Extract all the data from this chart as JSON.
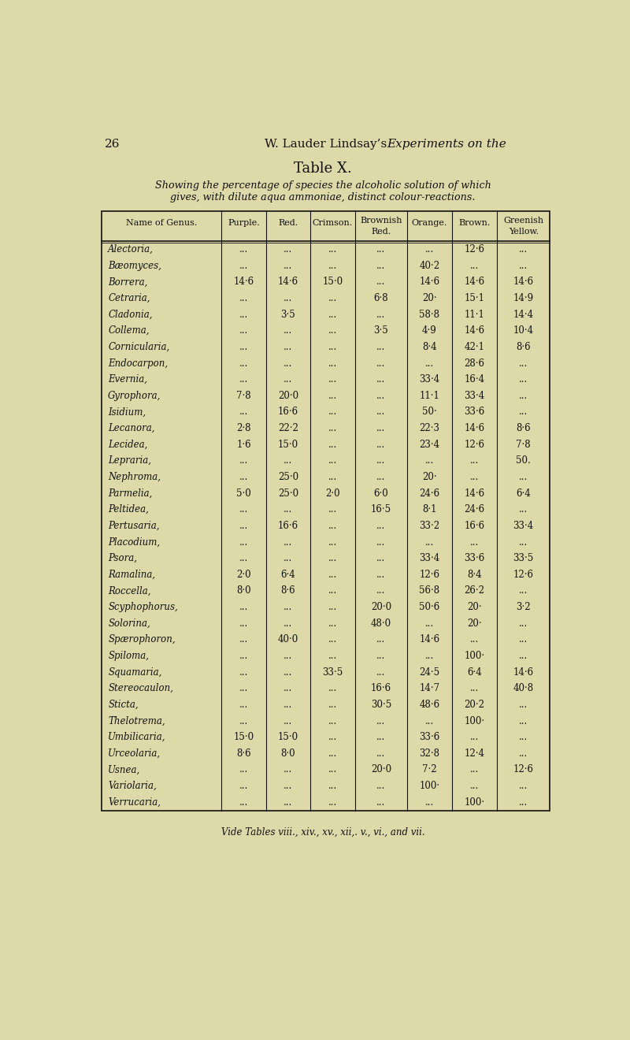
{
  "page_num": "26",
  "header_normal": "W. Lauder Lindsay’s ",
  "header_italic": "Experiments on the",
  "title": "Table X.",
  "subtitle_line1": "Showing the percentage of species the alcoholic solution of which",
  "subtitle_line2": "gives, with dilute aqua ammoniae, distinct colour-reactions.",
  "col_headers": [
    "Name of Genus.",
    "Purple.",
    "Red.",
    "Crimson.",
    "Brownish\nRed.",
    "Orange.",
    "Brown.",
    "Greenish\nYellow."
  ],
  "rows": [
    [
      "Alectoria,",
      "...",
      "...",
      "...",
      "...",
      "...",
      "12·6",
      "..."
    ],
    [
      "Bæomyces,",
      "...",
      "...",
      "...",
      "...",
      "40·2",
      "...",
      "..."
    ],
    [
      "Borrera,",
      "14·6",
      "14·6",
      "15·0",
      "...",
      "14·6",
      "14·6",
      "14·6"
    ],
    [
      "Cetraria,",
      "...",
      "...",
      "...",
      "6·8",
      "20·",
      "15·1",
      "14·9"
    ],
    [
      "Cladonia,",
      "...",
      "3·5",
      "...",
      "...",
      "58·8",
      "11·1",
      "14·4"
    ],
    [
      "Collema,",
      "...",
      "...",
      "...",
      "3·5",
      "4·9",
      "14·6",
      "10·4"
    ],
    [
      "Cornicularia,",
      "...",
      "...",
      "...",
      "...",
      "8·4",
      "42·1",
      "8·6"
    ],
    [
      "Endocarpon,",
      "...",
      "...",
      "...",
      "...",
      "...",
      "28·6",
      "..."
    ],
    [
      "Evernia,",
      "...",
      "...",
      "...",
      "...",
      "33·4",
      "16·4",
      "..."
    ],
    [
      "Gyrophora,",
      "7·8",
      "20·0",
      "...",
      "...",
      "11·1",
      "33·4",
      "..."
    ],
    [
      "Isidium,",
      "...",
      "16·6",
      "...",
      "...",
      "50·",
      "33·6",
      "..."
    ],
    [
      "Lecanora,",
      "2·8",
      "22·2",
      "...",
      "...",
      "22·3",
      "14·6",
      "8·6"
    ],
    [
      "Lecidea,",
      "1·6",
      "15·0",
      "...",
      "...",
      "23·4",
      "12·6",
      "7·8"
    ],
    [
      "Lepraria,",
      "...",
      "...",
      "...",
      "...",
      "...",
      "...",
      "50."
    ],
    [
      "Nephroma,",
      "...",
      "25·0",
      "...",
      "...",
      "20·",
      "...",
      "..."
    ],
    [
      "Parmelia,",
      "5·0",
      "25·0",
      "2·0",
      "6·0",
      "24·6",
      "14·6",
      "6·4"
    ],
    [
      "Peltidea,",
      "...",
      "...",
      "...",
      "16·5",
      "8·1",
      "24·6",
      "..."
    ],
    [
      "Pertusaria,",
      "...",
      "16·6",
      "...",
      "...",
      "33·2",
      "16·6",
      "33·4"
    ],
    [
      "Placodium,",
      "...",
      "...",
      "...",
      "...",
      "...",
      "...",
      "..."
    ],
    [
      "Psora,",
      "...",
      "...",
      "...",
      "...",
      "33·4",
      "33·6",
      "33·5"
    ],
    [
      "Ramalina,",
      "2·0",
      "6·4",
      "...",
      "...",
      "12·6",
      "8·4",
      "12·6"
    ],
    [
      "Roccella,",
      "8·0",
      "8·6",
      "...",
      "...",
      "56·8",
      "26·2",
      "..."
    ],
    [
      "Scyphophorus,",
      "...",
      "...",
      "...",
      "20·0",
      "50·6",
      "20·",
      "3·2"
    ],
    [
      "Solorina,",
      "...",
      "...",
      "...",
      "48·0",
      "...",
      "20·",
      "..."
    ],
    [
      "Spærophoron,",
      "...",
      "40·0",
      "...",
      "...",
      "14·6",
      "...",
      "..."
    ],
    [
      "Spiloma,",
      "...",
      "...",
      "...",
      "...",
      "...",
      "100·",
      "..."
    ],
    [
      "Squamaria,",
      "...",
      "...",
      "33·5",
      "...",
      "24·5",
      "6·4",
      "14·6"
    ],
    [
      "Stereocaulon,",
      "...",
      "...",
      "...",
      "16·6",
      "14·7",
      "...",
      "40·8"
    ],
    [
      "Sticta,",
      "...",
      "...",
      "...",
      "30·5",
      "48·6",
      "20·2",
      "..."
    ],
    [
      "Thelotrema,",
      "...",
      "...",
      "...",
      "...",
      "...",
      "100·",
      "..."
    ],
    [
      "Umbilicaria,",
      "15·0",
      "15·0",
      "...",
      "...",
      "33·6",
      "...",
      "..."
    ],
    [
      "Urceolaria,",
      "8·6",
      "8·0",
      "...",
      "...",
      "32·8",
      "12·4",
      "..."
    ],
    [
      "Usnea,",
      "...",
      "...",
      "...",
      "20·0",
      "7·2",
      "...",
      "12·6"
    ],
    [
      "Variolaria,",
      "...",
      "...",
      "...",
      "...",
      "100·",
      "...",
      "..."
    ],
    [
      "Verrucaria,",
      "...",
      "...",
      "...",
      "...",
      "...",
      "100·",
      "..."
    ]
  ],
  "footer": "Vide Tables viii., xiv., xv., xii,. v., vi., and vii.",
  "bg_color": "#ddd9a8",
  "text_color": "#111111",
  "line_color": "#111111"
}
